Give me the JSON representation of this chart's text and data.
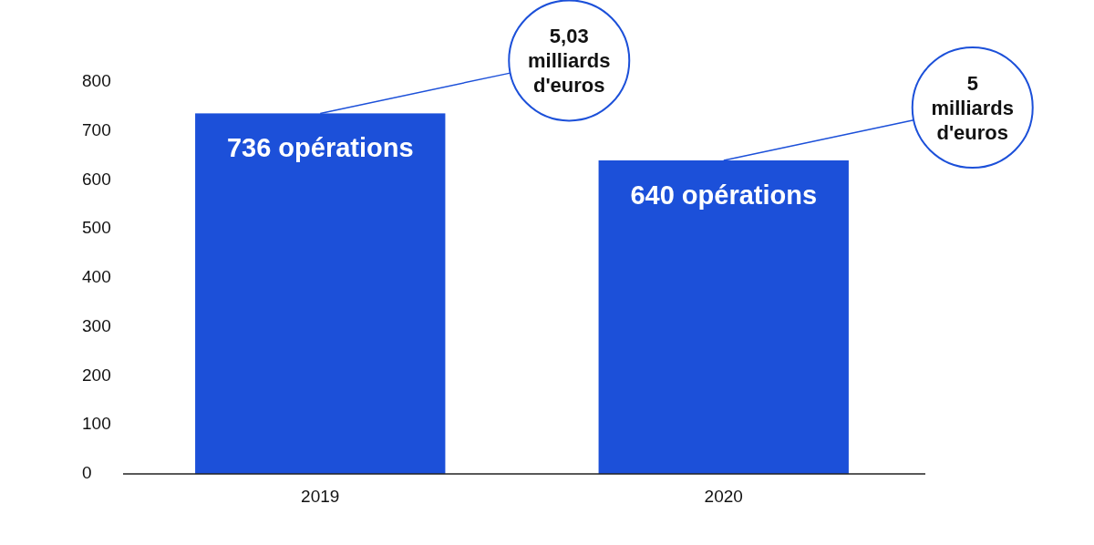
{
  "chart_data": {
    "type": "bar",
    "categories": [
      "2019",
      "2020"
    ],
    "values": [
      736,
      640
    ],
    "color": "#1c50d9",
    "value_labels": [
      "736 opérations",
      "640 opérations"
    ],
    "ylim": [
      0,
      800
    ],
    "yticks": [
      0,
      100,
      200,
      300,
      400,
      500,
      600,
      700,
      800
    ],
    "grid": false,
    "annotations": [
      {
        "text": "5,03 milliards d'euros",
        "x": "2019",
        "y": 736
      },
      {
        "text": "5 milliards d'euros",
        "x": "2020",
        "y": 640
      }
    ]
  }
}
